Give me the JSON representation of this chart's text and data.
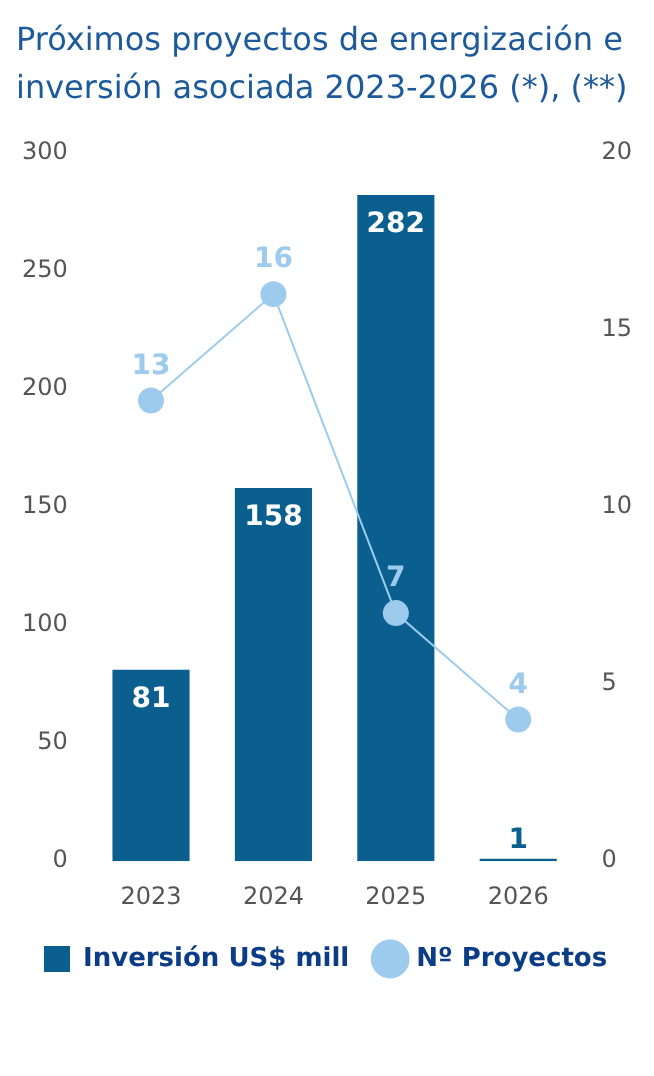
{
  "chart_data": {
    "type": "bar",
    "title": "Próximos proyectos de energización e inversión asociada 2023-2026 (*), (**)",
    "categories": [
      "2023",
      "2024",
      "2025",
      "2026"
    ],
    "series": [
      {
        "name": "Inversión US$ mill",
        "color": "#0a5f8e",
        "values": [
          81,
          158,
          282,
          1
        ]
      },
      {
        "name": "Nº Proyectos",
        "type": "line",
        "axis": "y2",
        "color": "#9ccbee",
        "values": [
          13,
          16,
          7,
          4
        ]
      }
    ],
    "ylim": [
      0,
      300
    ],
    "yticks": [
      0,
      50,
      100,
      150,
      200,
      250,
      300
    ],
    "y2lim": [
      0,
      20
    ],
    "y2ticks": [
      0,
      5,
      10,
      15,
      20
    ],
    "grid": false,
    "legend": "bottom",
    "marker": "circle",
    "data_labels": true
  }
}
